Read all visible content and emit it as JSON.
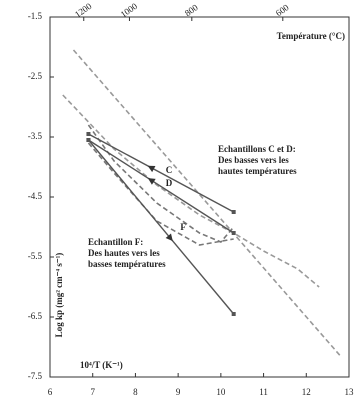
{
  "chart_data": {
    "type": "line",
    "x_label": "10⁴/T (K⁻¹)",
    "y_label": "Log kp (mg² cm⁻⁴ s⁻¹)",
    "x2_label": "Température (°C)",
    "xlim": [
      6,
      13
    ],
    "ylim": [
      -7.5,
      -1.5
    ],
    "xticks": [
      6,
      7,
      8,
      9,
      10,
      11,
      12,
      13
    ],
    "yticks": [
      -1.5,
      -2.5,
      -3.5,
      -4.5,
      -5.5,
      -6.5,
      -7.5
    ],
    "x2ticks": [
      {
        "value": 6.79,
        "label": "1200"
      },
      {
        "value": 7.86,
        "label": "1000"
      },
      {
        "value": 9.32,
        "label": "800"
      },
      {
        "value": 11.45,
        "label": "600"
      }
    ],
    "annotations": [
      {
        "lines": [
          "Echantillons C et D:",
          "Des basses vers les",
          "hautes températures"
        ]
      },
      {
        "lines": [
          "Echantillon F:",
          "Des hautes vers les",
          "basses températures"
        ]
      }
    ],
    "series": [
      {
        "color": "#999999",
        "dashed": true,
        "x": [
          6.55,
          12.8
        ],
        "values": [
          -2.05,
          -7.15
        ]
      },
      {
        "color": "#999999",
        "dashed": true,
        "x": [
          6.3,
          6.7,
          7.5,
          8.5,
          9.5,
          10.3,
          11.0,
          11.8,
          12.3
        ],
        "values": [
          -2.8,
          -3.1,
          -3.7,
          -4.3,
          -4.8,
          -5.1,
          -5.4,
          -5.7,
          -6.0
        ]
      },
      {
        "color": "#777777",
        "dashed": true,
        "x": [
          6.9,
          7.5,
          8.5,
          9.5,
          10.0,
          10.3
        ],
        "values": [
          -3.3,
          -3.9,
          -4.6,
          -5.1,
          -5.25,
          -5.0
        ]
      },
      {
        "color": "#777777",
        "dashed": true,
        "x": [
          6.9,
          7.5,
          8.5,
          9.5,
          10.3
        ],
        "values": [
          -3.6,
          -4.1,
          -4.9,
          -5.3,
          -5.2
        ]
      },
      {
        "name": "C",
        "color": "#555555",
        "dashed": false,
        "x": [
          6.9,
          10.3
        ],
        "values": [
          -3.45,
          -4.75
        ]
      },
      {
        "name": "D",
        "color": "#555555",
        "dashed": false,
        "x": [
          6.9,
          10.3
        ],
        "values": [
          -3.55,
          -5.1
        ]
      },
      {
        "name": "F",
        "color": "#555555",
        "dashed": false,
        "x": [
          6.9,
          10.3
        ],
        "values": [
          -3.55,
          -6.45
        ]
      }
    ]
  }
}
